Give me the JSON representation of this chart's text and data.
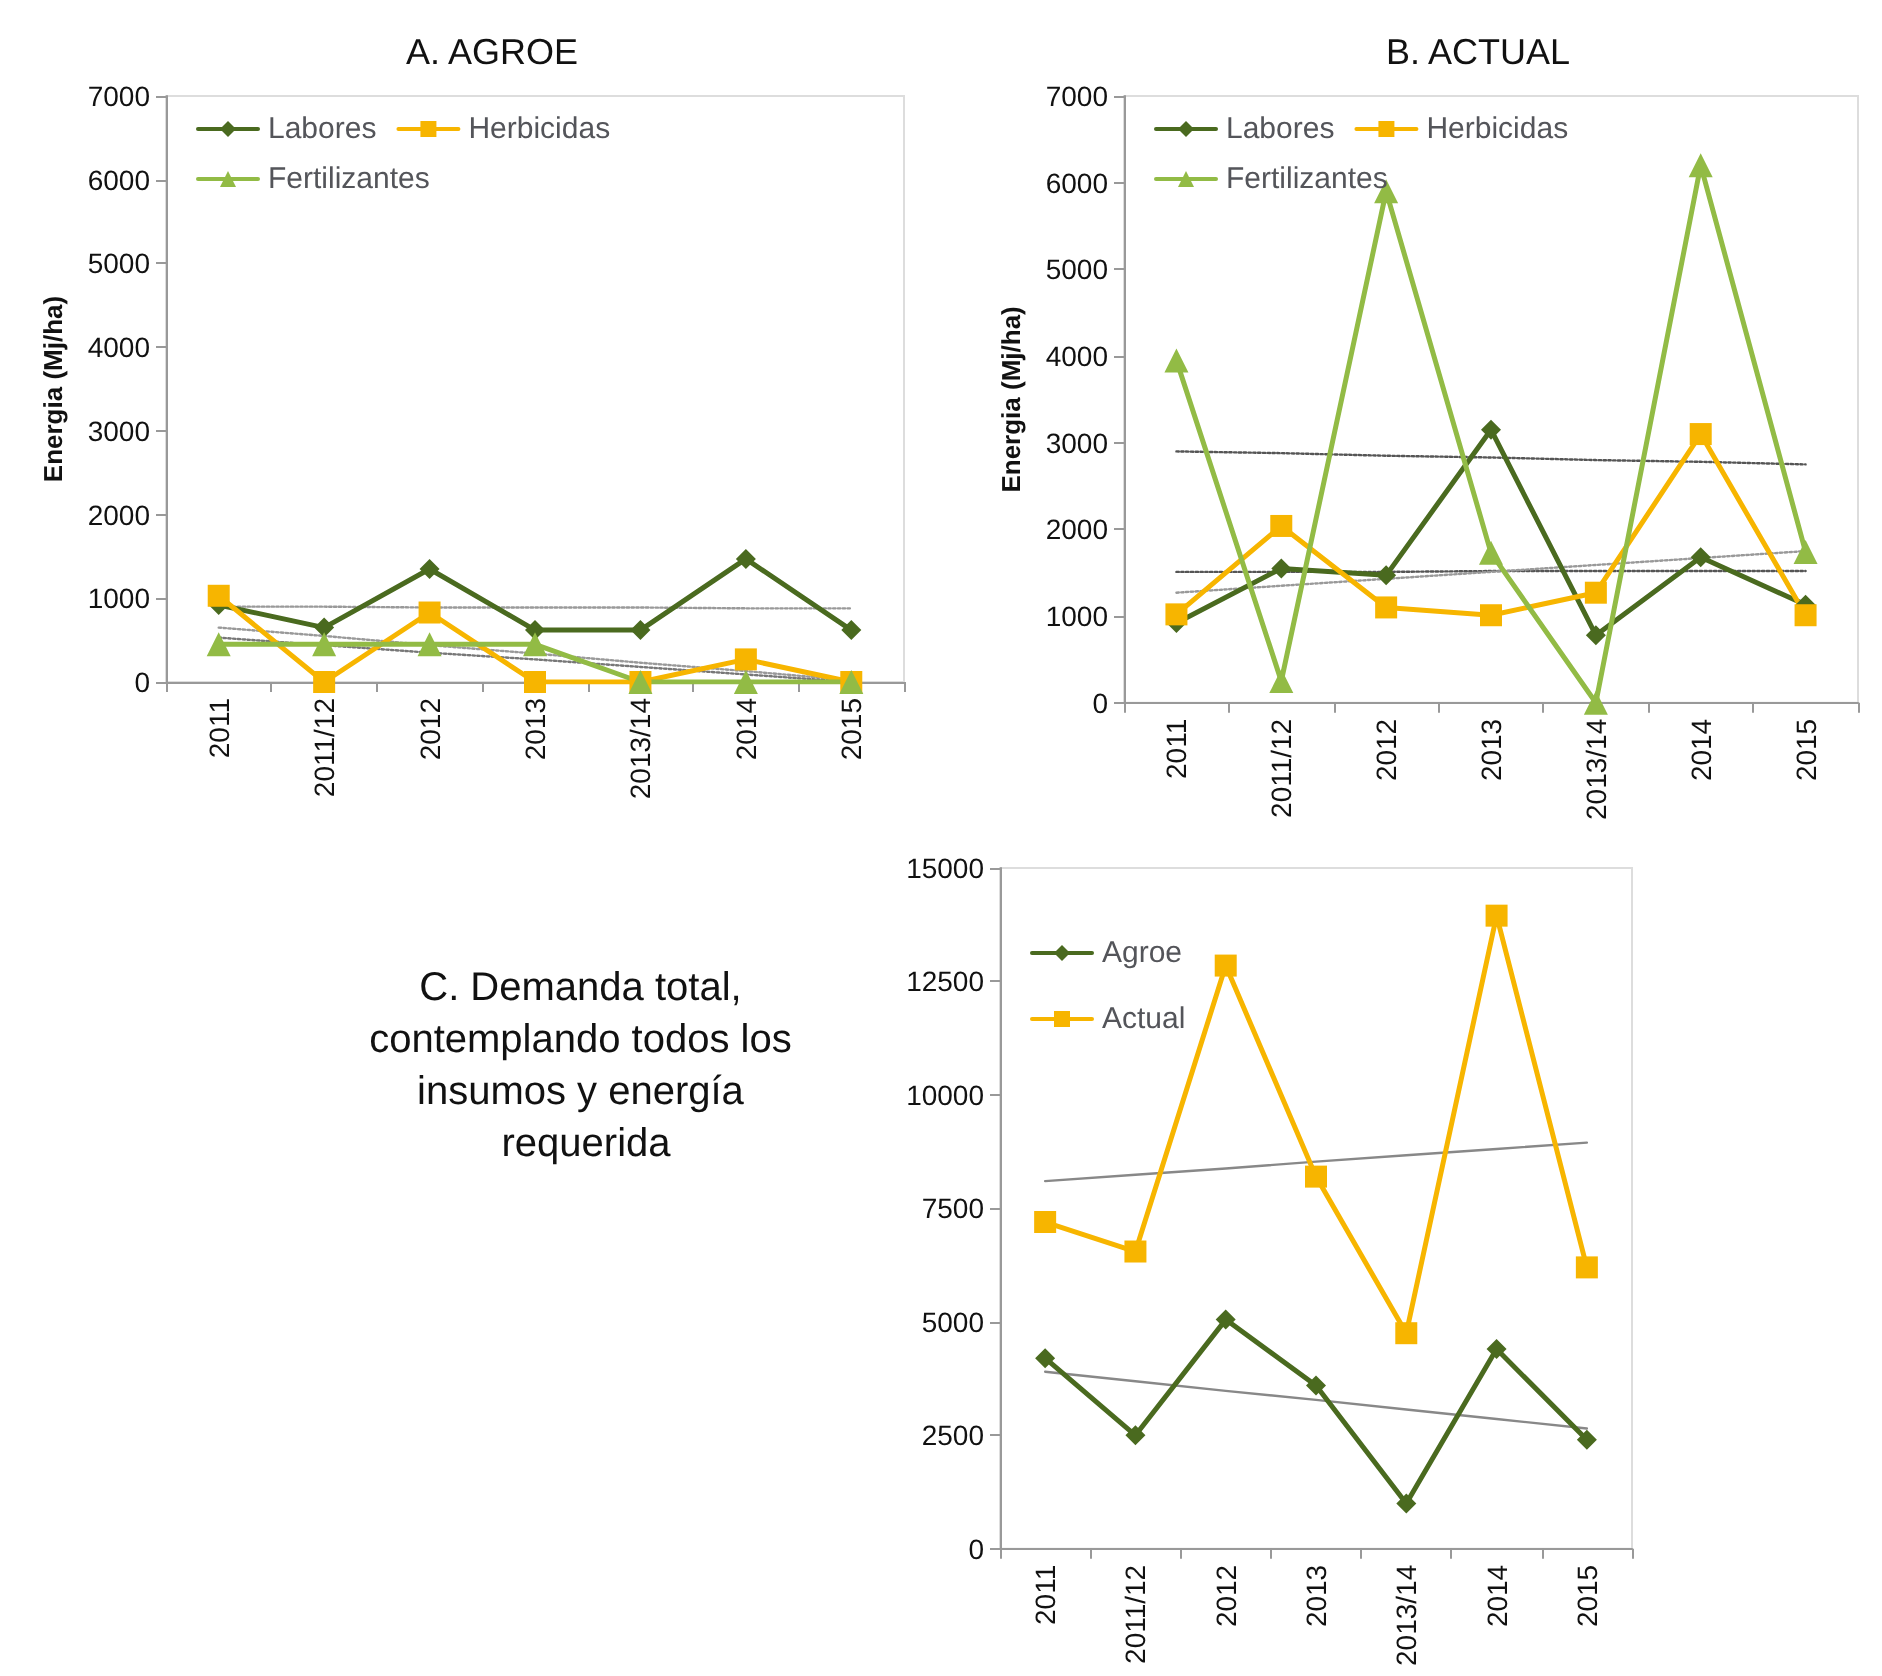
{
  "chart_data": [
    {
      "type": "line",
      "title": "A. AGROE",
      "ylabel": "Energia (Mj/ha)",
      "categories": [
        "2011",
        "2011/12",
        "2012",
        "2013",
        "2013/14",
        "2014",
        "2015"
      ],
      "ylim": [
        0,
        7000
      ],
      "yticks": [
        0,
        1000,
        2000,
        3000,
        4000,
        5000,
        6000,
        7000
      ],
      "grid": false,
      "legend": "top left",
      "line_style": "solid",
      "series": [
        {
          "name": "Labores",
          "color": "#4a6a1f",
          "marker": "diamond",
          "values": [
            920,
            650,
            1350,
            620,
            620,
            1470,
            620
          ]
        },
        {
          "name": "Herbicidas",
          "color": "#f7b500",
          "marker": "square",
          "values": [
            1030,
            0,
            830,
            0,
            0,
            270,
            0
          ]
        },
        {
          "name": "Fertilizantes",
          "color": "#92bb45",
          "marker": "triangle",
          "values": [
            450,
            450,
            450,
            450,
            0,
            0,
            0
          ]
        },
        {
          "type": "line",
          "color": "#999999",
          "marker": "none",
          "line_style": "dotted",
          "values": [
            900,
            900,
            890,
            890,
            890,
            880,
            880
          ]
        },
        {
          "type": "line",
          "color": "#999999",
          "marker": "none",
          "line_style": "dotted",
          "values": [
            650,
            550,
            440,
            340,
            230,
            130,
            20
          ]
        },
        {
          "type": "line",
          "color": "#777777",
          "marker": "none",
          "line_style": "dotted",
          "values": [
            530,
            440,
            350,
            270,
            180,
            90,
            0
          ]
        }
      ]
    },
    {
      "type": "line",
      "title": "B. ACTUAL",
      "ylabel": "Energia (Mj/ha)",
      "categories": [
        "2011",
        "2011/12",
        "2012",
        "2013",
        "2013/14",
        "2014",
        "2015"
      ],
      "ylim": [
        0,
        7000
      ],
      "yticks": [
        0,
        1000,
        2000,
        3000,
        4000,
        5000,
        6000,
        7000
      ],
      "grid": false,
      "legend": "top left",
      "line_style": "solid",
      "series": [
        {
          "name": "Labores",
          "color": "#4a6a1f",
          "marker": "diamond",
          "values": [
            920,
            1550,
            1470,
            3150,
            780,
            1680,
            1130
          ]
        },
        {
          "name": "Herbicidas",
          "color": "#f7b500",
          "marker": "square",
          "values": [
            1020,
            2040,
            1100,
            1010,
            1270,
            3100,
            1010
          ]
        },
        {
          "name": "Fertilizantes",
          "color": "#92bb45",
          "marker": "triangle",
          "values": [
            3950,
            250,
            5900,
            1730,
            0,
            6200,
            1740
          ]
        },
        {
          "type": "line",
          "color": "#555555",
          "marker": "none",
          "line_style": "dotted",
          "values": [
            1510,
            1510,
            1510,
            1520,
            1520,
            1520,
            1520
          ]
        },
        {
          "type": "line",
          "color": "#999999",
          "marker": "none",
          "line_style": "dotted",
          "values": [
            1270,
            1350,
            1430,
            1510,
            1590,
            1670,
            1750
          ]
        },
        {
          "type": "line",
          "color": "#555555",
          "marker": "none",
          "line_style": "dotted",
          "values": [
            2900,
            2880,
            2850,
            2830,
            2800,
            2780,
            2750
          ]
        }
      ]
    },
    {
      "type": "line",
      "title": "C. Demanda total, contemplando todos los insumos y energía requerida",
      "categories": [
        "2011",
        "2011/12",
        "2012",
        "2013",
        "2013/14",
        "2014",
        "2015"
      ],
      "ylim": [
        0,
        15000
      ],
      "yticks": [
        0,
        2500,
        5000,
        7500,
        10000,
        12500,
        15000
      ],
      "grid": false,
      "legend": "top left",
      "line_style": "solid",
      "series": [
        {
          "name": "Agroe",
          "color": "#4a6a1f",
          "marker": "diamond",
          "values": [
            4200,
            2500,
            5050,
            3600,
            1000,
            4400,
            2400
          ]
        },
        {
          "name": "Actual",
          "color": "#f7b500",
          "marker": "square",
          "values": [
            7200,
            6550,
            12850,
            8200,
            4750,
            13950,
            6200
          ]
        },
        {
          "type": "line",
          "color": "#888888",
          "marker": "none",
          "line_style": "solid",
          "values": [
            8100,
            8240,
            8380,
            8530,
            8670,
            8810,
            8950
          ]
        },
        {
          "type": "line",
          "color": "#888888",
          "marker": "none",
          "line_style": "solid",
          "values": [
            3900,
            3690,
            3480,
            3280,
            3070,
            2860,
            2650
          ]
        }
      ]
    }
  ]
}
